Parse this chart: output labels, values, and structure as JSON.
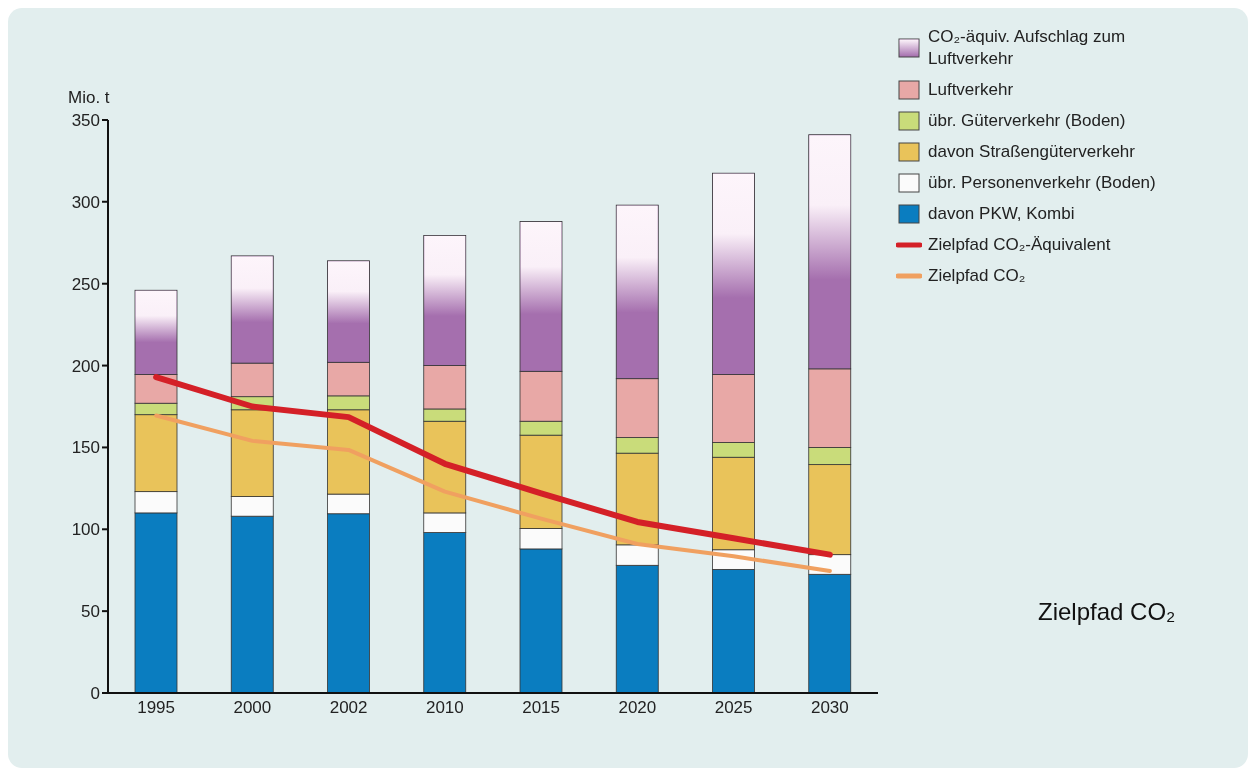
{
  "chart_data": {
    "type": "bar",
    "stacked": true,
    "ylabel": "Mio. t",
    "categories": [
      "1995",
      "2000",
      "2002",
      "2010",
      "2015",
      "2020",
      "2025",
      "2030"
    ],
    "series": [
      {
        "name": "davon PKW, Kombi",
        "color": "#0a7dc0",
        "values": [
          110,
          108,
          109.5,
          98,
          88,
          78,
          75.5,
          72.5
        ]
      },
      {
        "name": "übr. Personenverkehr (Boden)",
        "color": "#fbfbfb",
        "values": [
          13,
          12,
          12,
          12,
          12.5,
          12.5,
          12,
          12
        ]
      },
      {
        "name": "davon Straßengüterverkehr",
        "color": "#e9c35a",
        "values": [
          47,
          53,
          51.5,
          56,
          57,
          56,
          56.5,
          55
        ]
      },
      {
        "name": "übr. Güterverkehr (Boden)",
        "color": "#c9dc7a",
        "values": [
          7,
          8,
          8.5,
          7.5,
          8.5,
          9.5,
          9,
          10.5
        ]
      },
      {
        "name": "Luftverkehr",
        "color": "#e8a8a6",
        "values": [
          17.5,
          20.5,
          20.5,
          26.5,
          30.5,
          36,
          41.5,
          48
        ]
      },
      {
        "name": "CO₂-äquiv. Aufschlag zum Luftverkehr",
        "color": "#a56fae",
        "values": [
          51.5,
          65.5,
          62,
          79.5,
          91.5,
          106,
          123,
          143
        ]
      },
      {
        "name": "Zielpfad CO₂-Äquivalent",
        "type": "line",
        "color": "#d42027",
        "values": [
          193,
          175,
          168.5,
          140,
          122,
          104.5,
          94.5,
          84.5
        ]
      },
      {
        "name": "Zielpfad CO₂",
        "type": "line",
        "color": "#f0a060",
        "values": [
          169.5,
          154,
          148.5,
          123,
          106.5,
          91,
          83.5,
          74.5
        ]
      }
    ],
    "ylim": [
      0,
      350
    ],
    "yticks": [
      0,
      50,
      100,
      150,
      200,
      250,
      300,
      350
    ],
    "legend": "top right",
    "marker": "none",
    "annotations": [
      "Zielpfad CO₂"
    ]
  }
}
